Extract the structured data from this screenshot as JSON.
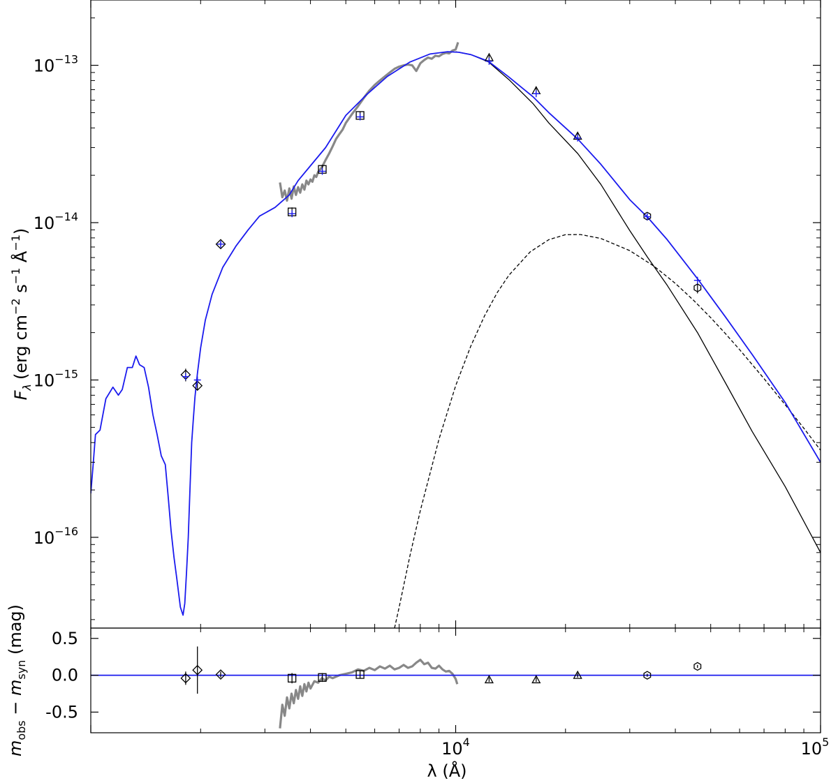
{
  "chart_data": [
    {
      "type": "line",
      "title": "",
      "xlabel": "λ (Å)",
      "ylabel": "F_λ (erg cm^-2 s^-1 Å^-1)",
      "ylabel_parts": {
        "symbol": "F",
        "sub": "λ",
        "pre": "(erg cm",
        "exp1": "−2",
        "mid1": " s",
        "exp2": "−1",
        "mid2": " Å",
        "exp3": "−1",
        "post": ")"
      },
      "xscale": "log",
      "yscale": "log",
      "xlim": [
        1000,
        100000
      ],
      "ylim": [
        2.65e-17,
        2.6e-13
      ],
      "yticks": [
        {
          "value": 1e-13,
          "base": "10",
          "exp": "−13"
        },
        {
          "value": 1e-14,
          "base": "10",
          "exp": "−14"
        },
        {
          "value": 1e-15,
          "base": "10",
          "exp": "−15"
        },
        {
          "value": 1e-16,
          "base": "10",
          "exp": "−16"
        }
      ],
      "grid": false,
      "legend": "none",
      "series": [
        {
          "color": "#1a1aee",
          "style": "solid",
          "x": [
            1000,
            1015,
            1030,
            1060,
            1100,
            1150,
            1190,
            1220,
            1260,
            1300,
            1330,
            1360,
            1400,
            1440,
            1480,
            1520,
            1560,
            1600,
            1630,
            1660,
            1690,
            1720,
            1760,
            1790,
            1810,
            1830,
            1850,
            1870,
            1890,
            1910,
            1930,
            1960,
            2000,
            2060,
            2150,
            2300,
            2500,
            2700,
            2900,
            3200,
            3500,
            3700,
            4000,
            4400,
            5000,
            5700,
            6500,
            7500,
            8500,
            9500,
            10200,
            11000,
            12300,
            14000,
            16300,
            18000,
            21600,
            25000,
            30000,
            33600,
            38000,
            46000,
            55000,
            65000,
            80000,
            100000
          ],
          "y": [
            1.9e-16,
            2.9e-16,
            4.5e-16,
            4.8e-16,
            7.6e-16,
            9e-16,
            8e-16,
            8.7e-16,
            1.2e-15,
            1.2e-15,
            1.42e-15,
            1.25e-15,
            1.2e-15,
            9e-16,
            6e-16,
            4.5e-16,
            3.3e-16,
            2.9e-16,
            1.8e-16,
            1.1e-16,
            7.5e-17,
            5.5e-17,
            3.6e-17,
            3.2e-17,
            3.8e-17,
            6e-17,
            1e-16,
            2e-16,
            4e-16,
            5.6e-16,
            7.8e-16,
            1.1e-15,
            1.6e-15,
            2.4e-15,
            3.5e-15,
            5.2e-15,
            7.1e-15,
            9e-15,
            1.1e-14,
            1.25e-14,
            1.5e-14,
            1.85e-14,
            2.3e-14,
            3e-14,
            4.8e-14,
            6.5e-14,
            8.5e-14,
            1.05e-13,
            1.18e-13,
            1.22e-13,
            1.21e-13,
            1.17e-13,
            1.06e-13,
            8.4e-14,
            6.3e-14,
            5e-14,
            3.4e-14,
            2.35e-14,
            1.4e-14,
            1.08e-14,
            7.8e-15,
            4.4e-15,
            2.5e-15,
            1.45e-15,
            7.2e-16,
            3e-16
          ]
        },
        {
          "color": "#000000",
          "style": "solid",
          "x": [
            10000,
            11000,
            12300,
            14000,
            16300,
            18000,
            21600,
            25000,
            30000,
            33600,
            38000,
            46000,
            55000,
            65000,
            80000,
            100000
          ],
          "y": [
            1.22e-13,
            1.17e-13,
            1.05e-13,
            8.1e-14,
            5.7e-14,
            4.3e-14,
            2.75e-14,
            1.75e-14,
            8.9e-15,
            6e-15,
            4e-15,
            2e-15,
            9.5e-16,
            4.7e-16,
            2.1e-16,
            8e-17
          ]
        },
        {
          "color": "#000000",
          "style": "dashed",
          "x": [
            6800,
            7000,
            7500,
            8000,
            9000,
            10000,
            11000,
            12000,
            13000,
            14000,
            16000,
            18000,
            20000,
            22000,
            25000,
            30000,
            35000,
            40000,
            45000,
            50000,
            55000,
            60000,
            70000,
            80000,
            90000,
            100000
          ],
          "y": [
            2.65e-17,
            3.6e-17,
            7.7e-17,
            1.48e-16,
            4.2e-16,
            9.2e-16,
            1.64e-15,
            2.56e-15,
            3.59e-15,
            4.64e-15,
            6.52e-15,
            7.8e-15,
            8.38e-15,
            8.4e-15,
            7.93e-15,
            6.64e-15,
            5.28e-15,
            4.11e-15,
            3.19e-15,
            2.49e-15,
            1.96e-15,
            1.56e-15,
            1.02e-15,
            6.96e-16,
            4.93e-16,
            3.58e-16
          ]
        },
        {
          "color": "#888888",
          "style": "solid",
          "x": [
            3300,
            3350,
            3400,
            3450,
            3500,
            3550,
            3600,
            3650,
            3700,
            3750,
            3800,
            3850,
            3900,
            3950,
            4000,
            4050,
            4100,
            4150,
            4200,
            4300,
            4400,
            4500,
            4600,
            4700,
            4800,
            4900,
            5000,
            5200,
            5400,
            5600,
            5800,
            6000,
            6200,
            6400,
            6600,
            6800,
            7000,
            7200,
            7400,
            7600,
            7800,
            8000,
            8200,
            8400,
            8600,
            8800,
            9000,
            9200,
            9400,
            9600,
            9800,
            10000,
            10100,
            10150
          ],
          "y": [
            1.8e-14,
            1.45e-14,
            1.6e-14,
            1.38e-14,
            1.65e-14,
            1.42e-14,
            1.7e-14,
            1.5e-14,
            1.68e-14,
            1.55e-14,
            1.75e-14,
            1.62e-14,
            1.85e-14,
            1.75e-14,
            1.88e-14,
            1.82e-14,
            2e-14,
            1.95e-14,
            2.1e-14,
            2.25e-14,
            2.5e-14,
            2.75e-14,
            3.05e-14,
            3.4e-14,
            3.65e-14,
            3.9e-14,
            4.3e-14,
            4.9e-14,
            5.5e-14,
            6.2e-14,
            6.9e-14,
            7.5e-14,
            8e-14,
            8.5e-14,
            9e-14,
            9.5e-14,
            9.8e-14,
            1e-13,
            1.01e-13,
            1e-13,
            9.2e-14,
            1.03e-13,
            1.08e-13,
            1.12e-13,
            1.1e-13,
            1.15e-13,
            1.14e-13,
            1.18e-13,
            1.2e-13,
            1.19e-13,
            1.24e-13,
            1.26e-13,
            1.35e-13,
            1.4e-13
          ]
        }
      ],
      "points": [
        {
          "x": 1820,
          "y": 1.08e-15,
          "marker": "diamond",
          "yerr": [
            1e-16,
            1e-16
          ]
        },
        {
          "x": 1960,
          "y": 9.2e-16,
          "marker": "diamond",
          "yerr": [
            6e-17,
            6e-17
          ]
        },
        {
          "x": 2270,
          "y": 7.3e-15,
          "marker": "diamond",
          "yerr": [
            3e-16,
            3e-16
          ]
        },
        {
          "x": 3560,
          "y": 1.17e-14,
          "marker": "square",
          "yerr": [
            8e-16,
            8e-16
          ]
        },
        {
          "x": 4310,
          "y": 2.18e-14,
          "marker": "square",
          "yerr": [
            1.5e-15,
            1.5e-15
          ]
        },
        {
          "x": 5470,
          "y": 4.8e-14,
          "marker": "square",
          "yerr": [
            3e-15,
            3e-15
          ]
        },
        {
          "x": 12350,
          "y": 1.12e-13,
          "marker": "triangle",
          "yerr": [
            4e-15,
            4e-15
          ]
        },
        {
          "x": 16620,
          "y": 6.9e-14,
          "marker": "triangle",
          "yerr": [
            3e-15,
            3e-15
          ]
        },
        {
          "x": 21590,
          "y": 3.55e-14,
          "marker": "triangle",
          "yerr": [
            1.5e-15,
            1.5e-15
          ]
        },
        {
          "x": 33500,
          "y": 1.1e-14,
          "marker": "hexagon",
          "yerr": [
            4e-16,
            4e-16
          ]
        },
        {
          "x": 46000,
          "y": 3.85e-15,
          "marker": "hexagon",
          "yerr": [
            3e-16,
            3e-16
          ]
        }
      ],
      "synthetic_points": [
        {
          "x": 1820,
          "y": 1.05e-15
        },
        {
          "x": 1960,
          "y": 1e-15
        },
        {
          "x": 2270,
          "y": 7.3e-15
        },
        {
          "x": 3560,
          "y": 1.14e-14
        },
        {
          "x": 4310,
          "y": 2.12e-14
        },
        {
          "x": 5470,
          "y": 4.7e-14
        },
        {
          "x": 12350,
          "y": 1.06e-13
        },
        {
          "x": 16620,
          "y": 6.6e-14
        },
        {
          "x": 21590,
          "y": 3.45e-14
        },
        {
          "x": 33500,
          "y": 1.09e-14
        },
        {
          "x": 46000,
          "y": 4.3e-15
        }
      ]
    },
    {
      "type": "scatter",
      "title": "",
      "xlabel": "λ (Å)",
      "ylabel": "m_obs − m_syn (mag)",
      "ylabel_parts": {
        "m1": "m",
        "sub1": "obs",
        "minus": " − ",
        "m2": "m",
        "sub2": "syn",
        "post": " (mag)"
      },
      "xscale": "log",
      "xlim": [
        1000,
        100000
      ],
      "ylim": [
        -0.78,
        0.64
      ],
      "xticks": [
        {
          "value": 10000,
          "base": "10",
          "exp": "4"
        },
        {
          "value": 100000,
          "base": "10",
          "exp": "5"
        }
      ],
      "yticks": [
        {
          "value": 0.5,
          "label": "0.5"
        },
        {
          "value": 0.0,
          "label": "0.0"
        },
        {
          "value": -0.5,
          "label": "-0.5"
        }
      ],
      "grid": false,
      "legend": "none",
      "zero_line": {
        "y": 0,
        "color": "#1a1aee"
      },
      "residual_curve": {
        "color": "#888888",
        "x": [
          3300,
          3350,
          3400,
          3450,
          3500,
          3550,
          3600,
          3650,
          3700,
          3750,
          3800,
          3850,
          3900,
          3950,
          4000,
          4100,
          4200,
          4300,
          4400,
          4500,
          4600,
          4800,
          5000,
          5200,
          5400,
          5600,
          5800,
          6000,
          6200,
          6400,
          6600,
          6800,
          7000,
          7200,
          7400,
          7600,
          7800,
          8000,
          8200,
          8400,
          8600,
          8800,
          9000,
          9200,
          9400,
          9600,
          9800,
          10000,
          10100
        ],
        "y": [
          -0.72,
          -0.4,
          -0.55,
          -0.3,
          -0.45,
          -0.25,
          -0.38,
          -0.2,
          -0.32,
          -0.15,
          -0.28,
          -0.12,
          -0.22,
          -0.1,
          -0.18,
          -0.08,
          -0.1,
          -0.04,
          -0.07,
          -0.02,
          -0.04,
          0.0,
          0.02,
          0.04,
          0.08,
          0.06,
          0.1,
          0.07,
          0.12,
          0.09,
          0.13,
          0.08,
          0.1,
          0.14,
          0.1,
          0.12,
          0.17,
          0.21,
          0.15,
          0.17,
          0.1,
          0.09,
          0.13,
          0.08,
          0.05,
          0.06,
          0.02,
          -0.05,
          -0.12
        ]
      },
      "points": [
        {
          "x": 1820,
          "y": -0.04,
          "marker": "diamond",
          "yerr": [
            0.09,
            0.09
          ]
        },
        {
          "x": 1960,
          "y": 0.07,
          "marker": "diamond",
          "yerr": [
            0.32,
            0.32
          ]
        },
        {
          "x": 2270,
          "y": 0.01,
          "marker": "diamond",
          "yerr": [
            0.04,
            0.04
          ]
        },
        {
          "x": 3560,
          "y": -0.04,
          "marker": "square",
          "yerr": [
            0.07,
            0.07
          ]
        },
        {
          "x": 4310,
          "y": -0.03,
          "marker": "square",
          "yerr": [
            0.06,
            0.06
          ]
        },
        {
          "x": 5470,
          "y": 0.01,
          "marker": "square",
          "yerr": [
            0.05,
            0.05
          ]
        },
        {
          "x": 12350,
          "y": -0.06,
          "marker": "triangle",
          "yerr": [
            0.03,
            0.03
          ]
        },
        {
          "x": 16620,
          "y": -0.06,
          "marker": "triangle",
          "yerr": [
            0.03,
            0.03
          ]
        },
        {
          "x": 21590,
          "y": 0.0,
          "marker": "triangle",
          "yerr": [
            0.03,
            0.03
          ]
        },
        {
          "x": 33500,
          "y": 0.0,
          "marker": "hexagon",
          "yerr": [
            0.02,
            0.02
          ]
        },
        {
          "x": 46000,
          "y": 0.12,
          "marker": "hexagon",
          "yerr": [
            0.02,
            0.02
          ]
        }
      ]
    }
  ]
}
